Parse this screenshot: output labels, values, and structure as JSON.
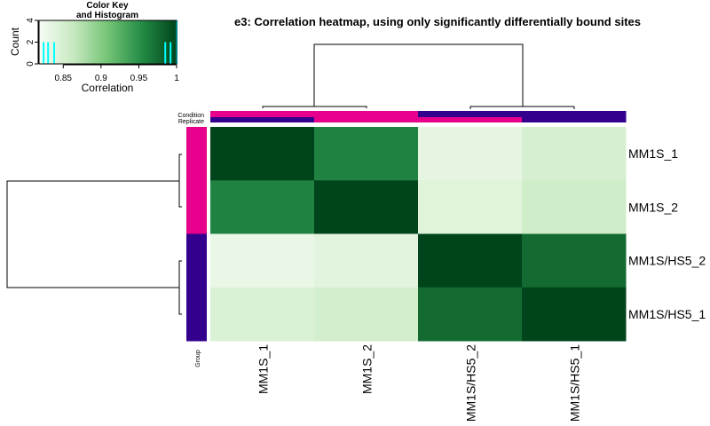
{
  "chart_data": {
    "type": "heatmap",
    "title": "e3: Correlation heatmap, using only significantly differentially bound sites",
    "rows": [
      "MM1S_1",
      "MM1S_2",
      "MM1S/HS5_2",
      "MM1S/HS5_1"
    ],
    "columns": [
      "MM1S_1",
      "MM1S_2",
      "MM1S/HS5_2",
      "MM1S/HS5_1"
    ],
    "values": [
      [
        1.0,
        0.96,
        0.835,
        0.85
      ],
      [
        0.96,
        1.0,
        0.84,
        0.855
      ],
      [
        0.83,
        0.838,
        1.0,
        0.975
      ],
      [
        0.845,
        0.852,
        0.975,
        1.0
      ]
    ],
    "annotation_labels": {
      "condition": "Condition",
      "replicate": "Replicate",
      "group": "Group"
    },
    "column_condition": [
      "MM1S",
      "MM1S",
      "MM1S/HS5",
      "MM1S/HS5"
    ],
    "column_replicate": [
      "1",
      "2",
      "2",
      "1"
    ],
    "row_group": [
      "MM1S",
      "MM1S",
      "MM1S/HS5",
      "MM1S/HS5"
    ],
    "annotation_colors": {
      "MM1S": "#e7008b",
      "MM1S/HS5": "#33008e"
    },
    "replicate_colors": {
      "1": "#33008e",
      "2": "#e7008b"
    },
    "color_key": {
      "title_line1": "Color Key",
      "title_line2": "and Histogram",
      "xlabel": "Correlation",
      "ylabel": "Count",
      "x_ticks": [
        "0.85",
        "0.9",
        "0.95",
        "1"
      ],
      "x_tick_values": [
        0.85,
        0.9,
        0.95,
        1.0
      ],
      "y_ticks": [
        "0",
        "2",
        "4"
      ],
      "y_tick_values": [
        0,
        2,
        4
      ],
      "xlim": [
        0.818,
        1.0
      ],
      "ylim": [
        0,
        4
      ],
      "histogram_values": [
        0.824,
        0.83,
        0.838,
        0.985,
        0.992,
        1.0
      ],
      "histogram_counts": [
        2,
        2,
        2,
        2,
        2,
        4
      ],
      "colors": [
        "#f7fcf5",
        "#c7e9c0",
        "#74c476",
        "#238b45",
        "#00441b"
      ],
      "histogram_color": "#00ffff"
    }
  }
}
